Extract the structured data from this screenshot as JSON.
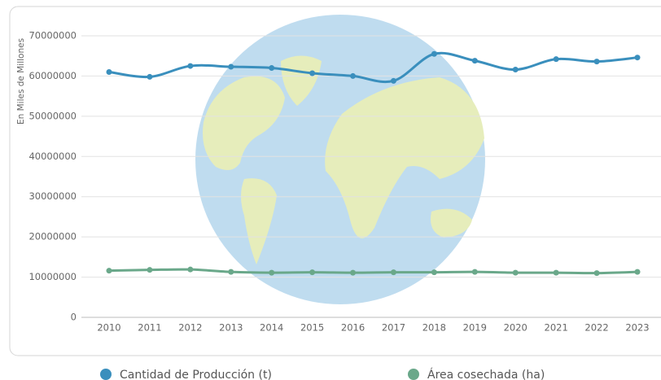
{
  "chart_data": {
    "type": "line",
    "y_axis_label": "En Miles de Millones",
    "categories": [
      "2010",
      "2011",
      "2012",
      "2013",
      "2014",
      "2015",
      "2016",
      "2017",
      "2018",
      "2019",
      "2020",
      "2021",
      "2022",
      "2023"
    ],
    "series": [
      {
        "name": "Cantidad de Producción (t)",
        "color": "#3a8fbd",
        "values": [
          61000000,
          59800000,
          62500000,
          62300000,
          62000000,
          60700000,
          60000000,
          58800000,
          65500000,
          63800000,
          61600000,
          64200000,
          63600000,
          64600000
        ]
      },
      {
        "name": "Área cosechada (ha)",
        "color": "#6aa88a",
        "values": [
          11600000,
          11800000,
          11900000,
          11300000,
          11100000,
          11200000,
          11100000,
          11200000,
          11200000,
          11300000,
          11100000,
          11100000,
          11000000,
          11300000
        ]
      }
    ],
    "ylim": [
      0,
      70000000
    ],
    "yticks": [
      0,
      10000000,
      20000000,
      30000000,
      40000000,
      50000000,
      60000000,
      70000000
    ],
    "grid": true
  }
}
